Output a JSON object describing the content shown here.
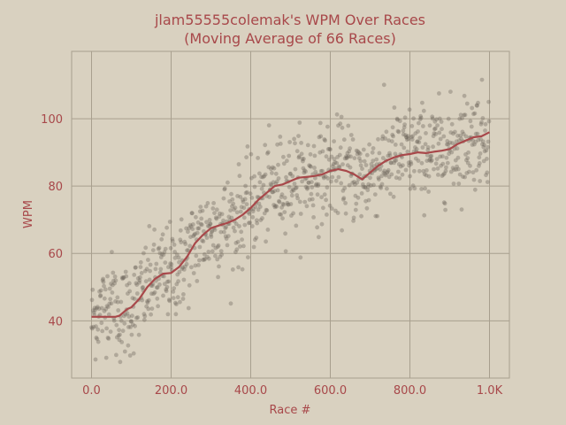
{
  "chart_data": {
    "type": "scatter",
    "title": "jlam55555colemak's WPM Over Races",
    "subtitle": "(Moving Average of 66 Races)",
    "xlabel": "Race #",
    "ylabel": "WPM",
    "xlim": [
      -50,
      1050
    ],
    "ylim": [
      23,
      120
    ],
    "x_ticks": [
      0,
      200,
      400,
      600,
      800,
      1000
    ],
    "x_tick_labels": [
      "0.0",
      "200.0",
      "400.0",
      "600.0",
      "800.0",
      "1.0K"
    ],
    "y_ticks": [
      40,
      60,
      80,
      100
    ],
    "y_tick_labels": [
      "40",
      "60",
      "80",
      "100"
    ],
    "grid": true,
    "colors": {
      "background": "#d9d1c0",
      "accent": "#a8484a",
      "points": "#6e675c",
      "grid": "#a89f8e"
    },
    "n_points": 1000,
    "scatter_spread": 7,
    "moving_average": {
      "window": 66,
      "x": [
        0,
        60,
        70,
        80,
        90,
        100,
        120,
        140,
        160,
        180,
        200,
        220,
        240,
        260,
        280,
        300,
        320,
        340,
        360,
        380,
        400,
        420,
        440,
        460,
        480,
        500,
        520,
        540,
        560,
        580,
        600,
        620,
        640,
        660,
        680,
        700,
        720,
        740,
        760,
        780,
        800,
        820,
        840,
        860,
        880,
        900,
        920,
        940,
        960,
        980,
        1000
      ],
      "y": [
        41.2,
        41.2,
        41.5,
        42.5,
        43.5,
        44,
        46.5,
        50,
        52.5,
        54,
        54.2,
        56,
        59,
        63,
        65.5,
        67.5,
        68.3,
        69,
        70,
        71.5,
        73.5,
        76,
        78,
        80,
        80.5,
        81.5,
        82.5,
        82.7,
        83,
        83.5,
        84.5,
        85,
        84.5,
        83.5,
        82,
        84,
        86,
        87.5,
        88.5,
        89.2,
        89.5,
        90,
        89.8,
        90.2,
        90.5,
        91,
        92.5,
        93.5,
        94.5,
        94.8,
        96
      ]
    }
  }
}
